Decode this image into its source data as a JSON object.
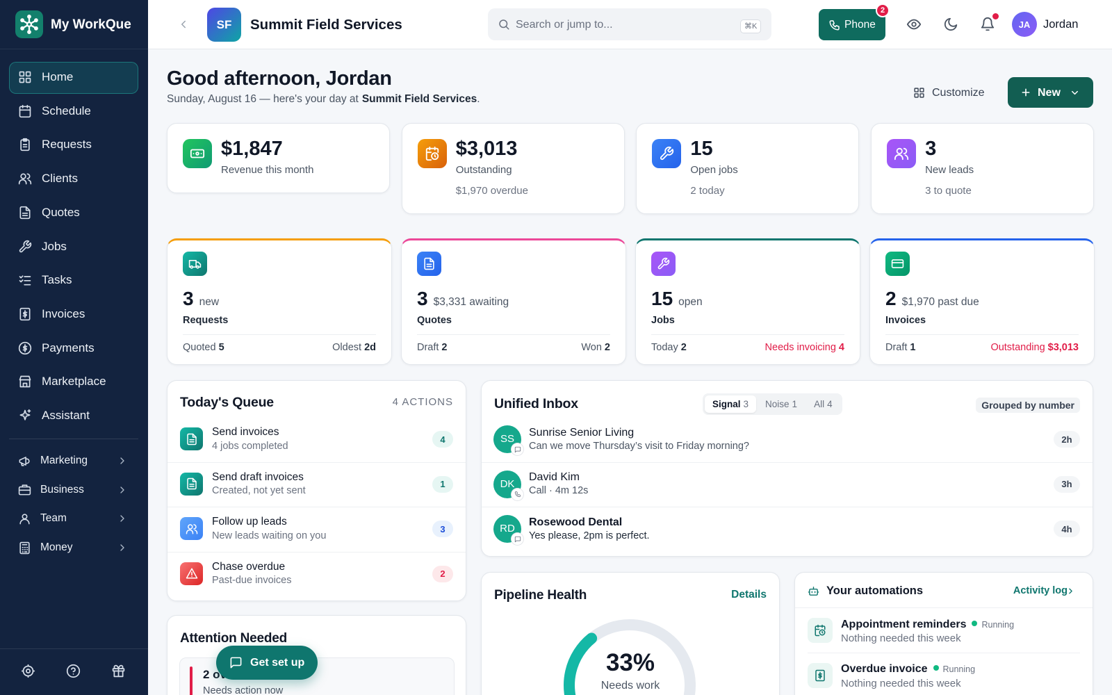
{
  "brand": {
    "name": "My WorkQue"
  },
  "nav": {
    "main": [
      "Home",
      "Schedule",
      "Requests",
      "Clients",
      "Quotes",
      "Jobs",
      "Tasks",
      "Invoices",
      "Payments",
      "Marketplace",
      "Assistant"
    ],
    "groups": [
      "Marketing",
      "Business",
      "Team",
      "Money"
    ]
  },
  "header": {
    "org_initials": "SF",
    "org_name": "Summit Field Services",
    "search_placeholder": "Search or jump to...",
    "shortcut": "⌘K",
    "phone": "Phone",
    "phone_badge": "2",
    "user_initials": "JA",
    "user_name": "Jordan"
  },
  "greeting": {
    "title": "Good afternoon, Jordan",
    "date": "Sunday, August 16 — here's your day at",
    "org": "Summit Field Services",
    "end": ".",
    "customize": "Customize",
    "new": "New"
  },
  "stats": [
    {
      "value": "$1,847",
      "label": "Revenue this month"
    },
    {
      "value": "$3,013",
      "label": "Outstanding",
      "note": "$1,970 overdue"
    },
    {
      "value": "15",
      "label": "Open jobs",
      "note": "2 today"
    },
    {
      "value": "3",
      "label": "New leads",
      "note": "3 to quote"
    }
  ],
  "pipeline_cards": [
    {
      "count": "3",
      "qualifier": "new",
      "title": "Requests",
      "left_label": "Quoted",
      "left_value": "5",
      "right_label": "Oldest",
      "right_value": "2d"
    },
    {
      "count": "3",
      "qualifier": "$3,331 awaiting",
      "title": "Quotes",
      "left_label": "Draft",
      "left_value": "2",
      "right_label": "Won",
      "right_value": "2"
    },
    {
      "count": "15",
      "qualifier": "open",
      "title": "Jobs",
      "left_label": "Today",
      "left_value": "2",
      "right_label": "Needs invoicing",
      "right_value": "4"
    },
    {
      "count": "2",
      "qualifier": "$1,970 past due",
      "title": "Invoices",
      "left_label": "Draft",
      "left_value": "1",
      "right_label": "Outstanding",
      "right_value": "$3,013"
    }
  ],
  "queue": {
    "title": "Today's Queue",
    "count": "4 ACTIONS",
    "items": [
      {
        "title": "Send invoices",
        "subtitle": "4 jobs completed",
        "badge": "4"
      },
      {
        "title": "Send draft invoices",
        "subtitle": "Created, not yet sent",
        "badge": "1"
      },
      {
        "title": "Follow up leads",
        "subtitle": "New leads waiting on you",
        "badge": "3"
      },
      {
        "title": "Chase overdue",
        "subtitle": "Past-due invoices",
        "badge": "2"
      }
    ]
  },
  "inbox": {
    "title": "Unified Inbox",
    "tabs": [
      {
        "label": "Signal",
        "count": "3"
      },
      {
        "label": "Noise",
        "count": "1"
      },
      {
        "label": "All",
        "count": "4"
      }
    ],
    "grouping": "Grouped by number",
    "items": [
      {
        "initials": "SS",
        "name": "Sunrise Senior Living",
        "message": "Can we move Thursday’s visit to Friday morning?",
        "time": "2h"
      },
      {
        "initials": "DK",
        "name": "David Kim",
        "message": "Call · 4m 12s",
        "time": "3h"
      },
      {
        "initials": "RD",
        "name": "Rosewood Dental",
        "message": "Yes please, 2pm is perfect.",
        "time": "4h"
      }
    ]
  },
  "attention": {
    "title": "Attention Needed",
    "items": [
      {
        "title": "2 ov",
        "subtitle": "Needs action now"
      }
    ]
  },
  "pipeline": {
    "title": "Pipeline Health",
    "link": "Details",
    "value": 33,
    "label": "33%",
    "caption": "Needs work"
  },
  "automations": {
    "title": "Your automations",
    "link": "Activity log",
    "items": [
      {
        "title": "Appointment reminders",
        "status": "Running",
        "subtitle": "Nothing needed this week"
      },
      {
        "title": "Overdue invoice",
        "status": "Running",
        "subtitle": "Nothing needed this week"
      }
    ]
  },
  "get_set_up": "Get set up"
}
